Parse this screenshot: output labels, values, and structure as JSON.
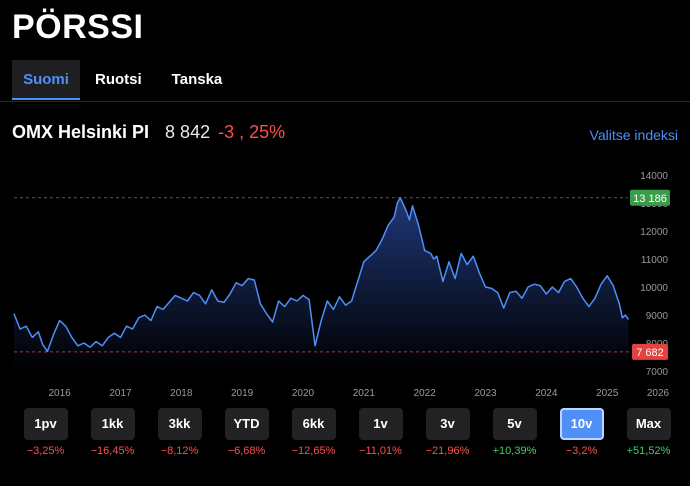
{
  "page": {
    "title": "PÖRSSI"
  },
  "tabs": [
    {
      "label": "Suomi",
      "active": true
    },
    {
      "label": "Ruotsi",
      "active": false
    },
    {
      "label": "Tanska",
      "active": false
    }
  ],
  "index": {
    "name": "OMX Helsinki PI",
    "value": "8 842",
    "change": "-3 , 25%",
    "select_label": "Valitse indeksi"
  },
  "colors": {
    "accent": "#4f8ff7",
    "negative": "#ff4d4d",
    "positive": "#3ecf6a",
    "high_badge": "#3a9d4a",
    "low_badge": "#e2433f"
  },
  "periods": [
    {
      "label": "1pv",
      "change": "−3,25%",
      "direction": "down",
      "active": false
    },
    {
      "label": "1kk",
      "change": "−16,45%",
      "direction": "down",
      "active": false
    },
    {
      "label": "3kk",
      "change": "−8,12%",
      "direction": "down",
      "active": false
    },
    {
      "label": "YTD",
      "change": "−6,68%",
      "direction": "down",
      "active": false
    },
    {
      "label": "6kk",
      "change": "−12,65%",
      "direction": "down",
      "active": false
    },
    {
      "label": "1v",
      "change": "−11,01%",
      "direction": "down",
      "active": false
    },
    {
      "label": "3v",
      "change": "−21,96%",
      "direction": "down",
      "active": false
    },
    {
      "label": "5v",
      "change": "+10,39%",
      "direction": "up",
      "active": false
    },
    {
      "label": "10v",
      "change": "−3,2%",
      "direction": "down",
      "active": true
    },
    {
      "label": "Max",
      "change": "+51,52%",
      "direction": "up",
      "active": false
    }
  ],
  "chart_data": {
    "type": "line",
    "title": "OMX Helsinki PI",
    "x_ticks": [
      "2016",
      "2017",
      "2018",
      "2019",
      "2020",
      "2021",
      "2022",
      "2023",
      "2024",
      "2025",
      "2026"
    ],
    "y_ticks": [
      7000,
      8000,
      9000,
      10000,
      11000,
      12000,
      13000,
      14000
    ],
    "ylim": [
      7000,
      14000
    ],
    "xlim": [
      2015.25,
      2026.0
    ],
    "high": {
      "value": 13186,
      "label": "13 186"
    },
    "low": {
      "value": 7682,
      "label": "7 682"
    },
    "series": [
      {
        "name": "OMX Helsinki PI",
        "x": [
          2015.25,
          2015.35,
          2015.45,
          2015.55,
          2015.65,
          2015.72,
          2015.8,
          2015.9,
          2016.0,
          2016.1,
          2016.2,
          2016.3,
          2016.4,
          2016.5,
          2016.6,
          2016.7,
          2016.8,
          2016.9,
          2017.0,
          2017.1,
          2017.2,
          2017.3,
          2017.4,
          2017.5,
          2017.6,
          2017.7,
          2017.8,
          2017.9,
          2018.0,
          2018.1,
          2018.2,
          2018.3,
          2018.4,
          2018.5,
          2018.6,
          2018.7,
          2018.8,
          2018.9,
          2019.0,
          2019.1,
          2019.2,
          2019.3,
          2019.4,
          2019.5,
          2019.6,
          2019.7,
          2019.8,
          2019.9,
          2020.0,
          2020.1,
          2020.2,
          2020.3,
          2020.4,
          2020.5,
          2020.6,
          2020.7,
          2020.8,
          2020.9,
          2021.0,
          2021.1,
          2021.2,
          2021.3,
          2021.4,
          2021.5,
          2021.55,
          2021.6,
          2021.7,
          2021.75,
          2021.8,
          2021.9,
          2022.0,
          2022.1,
          2022.15,
          2022.2,
          2022.3,
          2022.4,
          2022.5,
          2022.6,
          2022.7,
          2022.8,
          2022.9,
          2023.0,
          2023.1,
          2023.2,
          2023.3,
          2023.4,
          2023.5,
          2023.6,
          2023.7,
          2023.8,
          2023.9,
          2024.0,
          2024.1,
          2024.2,
          2024.3,
          2024.4,
          2024.5,
          2024.6,
          2024.7,
          2024.8,
          2024.9,
          2025.0,
          2025.1,
          2025.2,
          2025.25,
          2025.3,
          2025.35
        ],
        "values": [
          9050,
          8500,
          8600,
          8200,
          8400,
          7950,
          7700,
          8300,
          8800,
          8600,
          8200,
          7900,
          8000,
          7850,
          8050,
          7900,
          8200,
          8350,
          8200,
          8600,
          8500,
          8900,
          9000,
          8800,
          9300,
          9200,
          9450,
          9700,
          9600,
          9500,
          9800,
          9700,
          9400,
          9900,
          9500,
          9450,
          9750,
          10150,
          10050,
          10300,
          10250,
          9400,
          9050,
          8750,
          9500,
          9300,
          9600,
          9500,
          9700,
          9550,
          7900,
          8800,
          9500,
          9200,
          9650,
          9350,
          9500,
          10200,
          10900,
          11100,
          11300,
          11700,
          12200,
          12500,
          13000,
          13186,
          12700,
          12400,
          12900,
          12200,
          11300,
          11200,
          11000,
          11100,
          10200,
          10900,
          10300,
          11200,
          10800,
          11100,
          10500,
          10000,
          9950,
          9800,
          9250,
          9800,
          9850,
          9600,
          10000,
          10100,
          10050,
          9750,
          10000,
          9800,
          10200,
          10300,
          10000,
          9600,
          9300,
          9600,
          10100,
          10400,
          10050,
          9400,
          8900,
          9000,
          8842
        ]
      }
    ]
  }
}
